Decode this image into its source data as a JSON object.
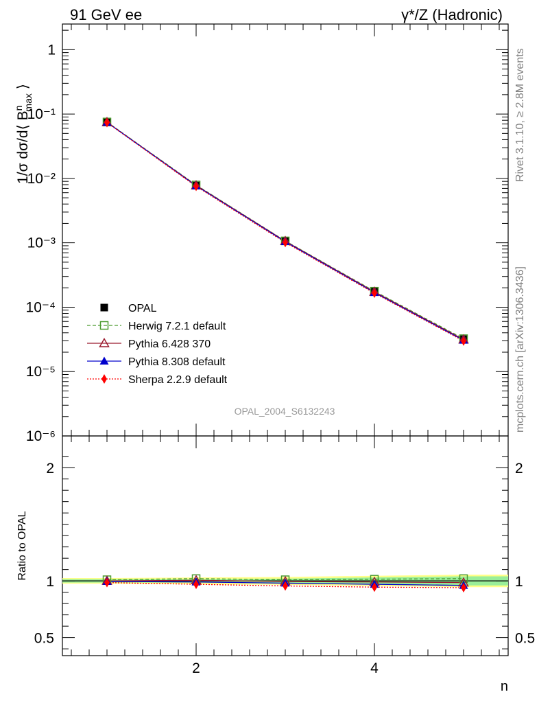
{
  "header": {
    "left": "91 GeV ee",
    "right_main": "γ*/Z (Hadronic)"
  },
  "side_labels": {
    "rivet": "Rivet 3.1.10, ≥ 2.8M events",
    "mcplots": "mcplots.cern.ch [arXiv:1306.3436]"
  },
  "watermark": "OPAL_2004_S6132243",
  "chart_data": [
    {
      "type": "scatter",
      "panel": "main",
      "ylabel": "1/σ dσ/d⟨ B^n_max ⟩",
      "yscale": "log",
      "xlim": [
        0.5,
        5.5
      ],
      "ylim": [
        1e-06,
        2.5
      ],
      "y_ticks": [
        {
          "value": 1,
          "label": "1"
        },
        {
          "value": 0.1,
          "label": "10⁻¹"
        },
        {
          "value": 0.01,
          "label": "10⁻²"
        },
        {
          "value": 0.001,
          "label": "10⁻³"
        },
        {
          "value": 0.0001,
          "label": "10⁻⁴"
        },
        {
          "value": 1e-05,
          "label": "10⁻⁵"
        },
        {
          "value": 1e-06,
          "label": "10⁻⁶"
        }
      ],
      "x": [
        1,
        2,
        3,
        4,
        5
      ],
      "series": [
        {
          "name": "OPAL",
          "color": "#000000",
          "marker": "filled-square",
          "line": "none",
          "values": [
            0.0745,
            0.00775,
            0.00106,
            0.000174,
            3.18e-05
          ]
        },
        {
          "name": "Herwig 7.2.1 default",
          "color": "#4a9a2e",
          "marker": "open-square",
          "line": "dashed",
          "values": [
            0.0752,
            0.0079,
            0.00107,
            0.000177,
            3.24e-05
          ]
        },
        {
          "name": "Pythia 6.428 370",
          "color": "#9b1a2e",
          "marker": "open-triangle",
          "line": "solid",
          "values": [
            0.0747,
            0.00778,
            0.00106,
            0.000173,
            3.14e-05
          ]
        },
        {
          "name": "Pythia 8.308 default",
          "color": "#0000cc",
          "marker": "filled-triangle",
          "line": "solid",
          "values": [
            0.0742,
            0.00768,
            0.00104,
            0.000169,
            3.06e-05
          ]
        },
        {
          "name": "Sherpa 2.2.9 default",
          "color": "#ff0000",
          "marker": "filled-diamond",
          "line": "dotted",
          "values": [
            0.0735,
            0.00752,
            0.00101,
            0.000165,
            2.98e-05
          ]
        }
      ]
    },
    {
      "type": "scatter",
      "panel": "ratio",
      "ylabel": "Ratio to OPAL",
      "xlabel": "n",
      "xlim": [
        0.5,
        5.5
      ],
      "ylim": [
        0.34,
        2.28
      ],
      "x_ticks": [
        {
          "value": 2,
          "label": "2"
        },
        {
          "value": 4,
          "label": "4"
        }
      ],
      "y_ticks": [
        {
          "value": 0.5,
          "label": "0.5"
        },
        {
          "value": 1,
          "label": "1"
        },
        {
          "value": 2,
          "label": "2"
        }
      ],
      "x": [
        1,
        2,
        3,
        4,
        5
      ],
      "band_inner": [
        0.985,
        0.985,
        0.98,
        0.97,
        0.96
      ],
      "band_inner_hi": [
        1.015,
        1.015,
        1.02,
        1.03,
        1.04
      ],
      "band_outer_lo": [
        0.975,
        0.97,
        0.965,
        0.955,
        0.945
      ],
      "band_outer_hi": [
        1.025,
        1.03,
        1.035,
        1.045,
        1.055
      ],
      "series": [
        {
          "name": "Herwig 7.2.1 default",
          "color": "#4a9a2e",
          "marker": "open-square",
          "line": "dashed",
          "values": [
            1.01,
            1.02,
            1.01,
            1.015,
            1.02
          ]
        },
        {
          "name": "Pythia 6.428 370",
          "color": "#9b1a2e",
          "marker": "open-triangle",
          "line": "solid",
          "values": [
            1.0,
            1.005,
            0.995,
            0.99,
            0.985
          ]
        },
        {
          "name": "Pythia 8.308 default",
          "color": "#0000cc",
          "marker": "filled-triangle",
          "line": "solid",
          "values": [
            0.995,
            0.99,
            0.98,
            0.97,
            0.96
          ]
        },
        {
          "name": "Sherpa 2.2.9 default",
          "color": "#ff0000",
          "marker": "filled-diamond",
          "line": "dotted",
          "values": [
            0.985,
            0.97,
            0.955,
            0.945,
            0.94
          ]
        }
      ]
    }
  ]
}
